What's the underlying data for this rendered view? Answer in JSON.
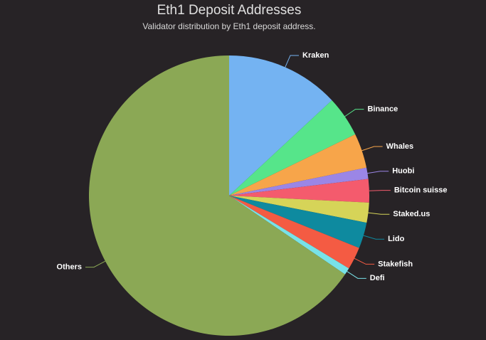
{
  "chart_data": {
    "type": "pie",
    "title": "Eth1 Deposit Addresses",
    "subtitle": "Validator distribution by Eth1 deposit address.",
    "categories": [
      "Kraken",
      "Binance",
      "Whales",
      "Huobi",
      "Bitcoin suisse",
      "Staked.us",
      "Lido",
      "Stakefish",
      "Defi",
      "Others"
    ],
    "values": [
      13.1,
      4.7,
      4.0,
      1.3,
      2.7,
      2.3,
      3.0,
      2.6,
      0.8,
      65.5
    ],
    "colors": [
      "#74b3f2",
      "#56e58a",
      "#f7a54a",
      "#9b86e6",
      "#f45b6d",
      "#d6d458",
      "#0e8a9f",
      "#f45b43",
      "#78e2e8",
      "#8ba855"
    ]
  }
}
